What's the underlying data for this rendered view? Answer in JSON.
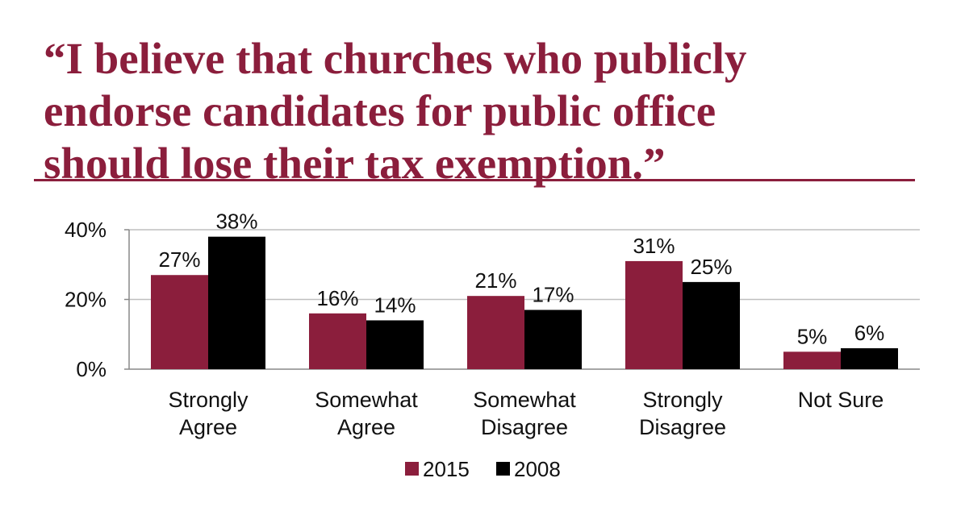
{
  "title_lines": [
    "“I believe that churches who publicly",
    "endorse candidates for public office",
    "should lose their tax exemption.”"
  ],
  "colors": {
    "accent": "#8b1e3c",
    "series_2015": "#8b1e3c",
    "series_2008": "#000000",
    "grid": "#bfbfbf"
  },
  "chart_data": {
    "type": "bar",
    "title": "“I believe that churches who publicly endorse candidates for public office should lose their tax exemption.”",
    "xlabel": "",
    "ylabel": "",
    "categories": [
      [
        "Strongly",
        "Agree"
      ],
      [
        "Somewhat",
        "Agree"
      ],
      [
        "Somewhat",
        "Disagree"
      ],
      [
        "Strongly",
        "Disagree"
      ],
      [
        "Not Sure"
      ]
    ],
    "series": [
      {
        "name": "2015",
        "color": "#8b1e3c",
        "values": [
          27,
          16,
          21,
          31,
          5
        ]
      },
      {
        "name": "2008",
        "color": "#000000",
        "values": [
          38,
          14,
          17,
          25,
          6
        ]
      }
    ],
    "ylim": [
      0,
      40
    ],
    "yticks": [
      0,
      20,
      40
    ],
    "ytick_labels": [
      "0%",
      "20%",
      "40%"
    ],
    "value_suffix": "%",
    "grid": true,
    "legend_position": "bottom"
  }
}
